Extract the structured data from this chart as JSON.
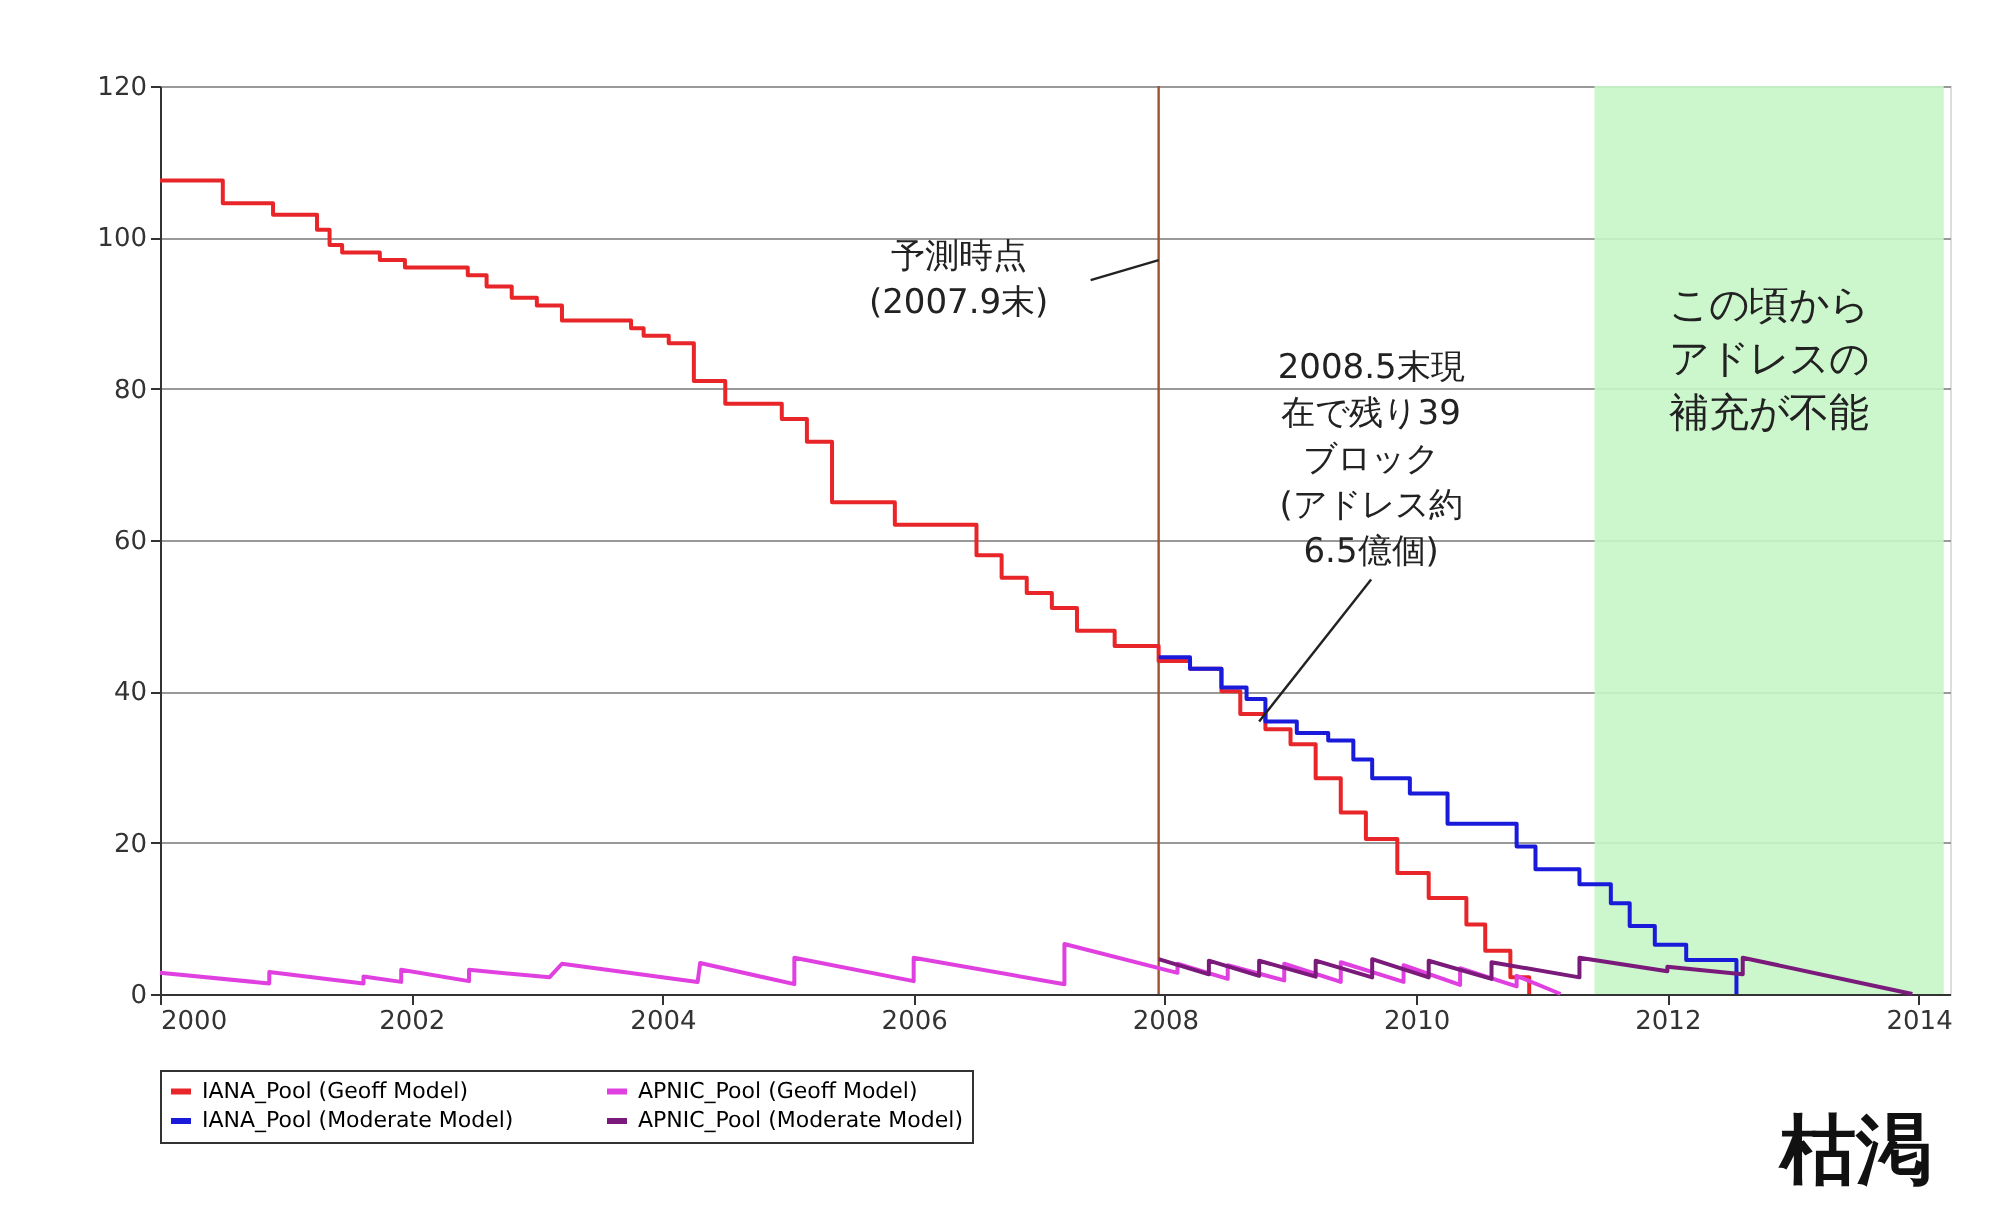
{
  "chart_data": {
    "type": "step",
    "xlim": [
      2000,
      2014.25
    ],
    "xticks": [
      2000,
      2002,
      2004,
      2006,
      2008,
      2010,
      2012,
      2014
    ],
    "ylim": [
      0,
      120
    ],
    "yticks": [
      0,
      20,
      40,
      60,
      80,
      100,
      120
    ],
    "grid": "y",
    "legend": "bottom",
    "line_style": "solid",
    "marker": "none",
    "series": [
      {
        "name": "IANA_Pool (Geoff Model)",
        "color": "#e8262a",
        "x": [
          2000,
          2000.5,
          2000.9,
          2001.25,
          2001.35,
          2001.45,
          2001.75,
          2001.95,
          2002.45,
          2002.6,
          2002.8,
          2003.0,
          2003.2,
          2003.75,
          2003.85,
          2004.05,
          2004.25,
          2004.5,
          2004.95,
          2005.15,
          2005.35,
          2005.85,
          2006.5,
          2006.7,
          2006.9,
          2007.1,
          2007.3,
          2007.6,
          2007.95,
          2008.2,
          2008.45,
          2008.6,
          2008.8,
          2009.0,
          2009.2,
          2009.4,
          2009.6,
          2009.85,
          2010.1,
          2010.4,
          2010.55,
          2010.75,
          2010.9
        ],
        "values": [
          107.5,
          104.5,
          103,
          101,
          99,
          98,
          97,
          96,
          95,
          93.5,
          92,
          91,
          89,
          88,
          87,
          86,
          81,
          78,
          76,
          73,
          65,
          62,
          58,
          55,
          53,
          51,
          48,
          46,
          44,
          43,
          40,
          37,
          35,
          33,
          28.5,
          24,
          20.5,
          16,
          12.7,
          9.2,
          5.7,
          2.2,
          0
        ]
      },
      {
        "name": "APNIC_Pool (Geoff Model)",
        "color": "#e040e0",
        "type": "line",
        "x": [
          2000,
          2000.87,
          2000.87,
          2001.62,
          2001.62,
          2001.92,
          2001.92,
          2002.46,
          2002.46,
          2003.1,
          2003.2,
          2004.28,
          2004.3,
          2005.05,
          2005.05,
          2006.0,
          2006.0,
          2007.2,
          2007.2,
          2008.1,
          2008.1,
          2008.5,
          2008.5,
          2008.95,
          2008.95,
          2009.4,
          2009.4,
          2009.9,
          2009.9,
          2010.35,
          2010.35,
          2010.8,
          2010.8,
          2011.15
        ],
        "values": [
          2.8,
          1.4,
          2.9,
          1.4,
          2.3,
          1.6,
          3.2,
          1.7,
          3.2,
          2.2,
          4.0,
          1.6,
          4.1,
          1.3,
          4.8,
          1.7,
          4.8,
          1.3,
          6.6,
          2.8,
          4.0,
          2.0,
          3.8,
          1.8,
          4.0,
          1.6,
          4.2,
          1.6,
          3.8,
          1.2,
          3.4,
          1.0,
          2.4,
          0
        ]
      },
      {
        "name": "IANA_Pool (Moderate Model)",
        "color": "#1a1adb",
        "x": [
          2007.95,
          2008.2,
          2008.45,
          2008.65,
          2008.8,
          2009.05,
          2009.3,
          2009.5,
          2009.65,
          2009.95,
          2010.25,
          2010.8,
          2010.95,
          2011.3,
          2011.55,
          2011.7,
          2011.9,
          2012.15,
          2012.55
        ],
        "values": [
          44.5,
          43,
          40.5,
          39,
          36,
          34.5,
          33.5,
          31,
          28.5,
          26.5,
          22.5,
          19.5,
          16.5,
          14.5,
          12,
          9,
          6.5,
          4.5,
          0
        ]
      },
      {
        "name": "APNIC_Pool (Moderate Model)",
        "color": "#7a1a7a",
        "type": "line",
        "x": [
          2007.95,
          2008.35,
          2008.35,
          2008.75,
          2008.75,
          2009.2,
          2009.2,
          2009.65,
          2009.65,
          2010.1,
          2010.1,
          2010.6,
          2010.6,
          2011.3,
          2011.3,
          2012.0,
          2012.0,
          2012.6,
          2012.6,
          2013.95
        ],
        "values": [
          4.6,
          2.6,
          4.4,
          2.4,
          4.4,
          2.3,
          4.4,
          2.2,
          4.6,
          2.2,
          4.4,
          2.0,
          4.2,
          2.2,
          4.8,
          3.0,
          3.6,
          2.6,
          4.8,
          0
        ]
      }
    ],
    "ref_lines": [
      {
        "axis": "x",
        "value": 2007.95,
        "color": "#a0522d"
      }
    ],
    "bands": [
      {
        "axis": "x",
        "from": 2011.42,
        "to": 2014.2,
        "label": "この頃からアドレスの補充が不能",
        "color": "#c6f5c6"
      }
    ],
    "annotations": [
      {
        "text": "予測時点(2007.9末)",
        "x": 2007.95,
        "y": 97
      },
      {
        "text": "2008.5末現在で残り39ブロック(アドレス約6.5億個)",
        "x": 2008.75,
        "y": 36
      },
      "枯渇"
    ]
  }
}
